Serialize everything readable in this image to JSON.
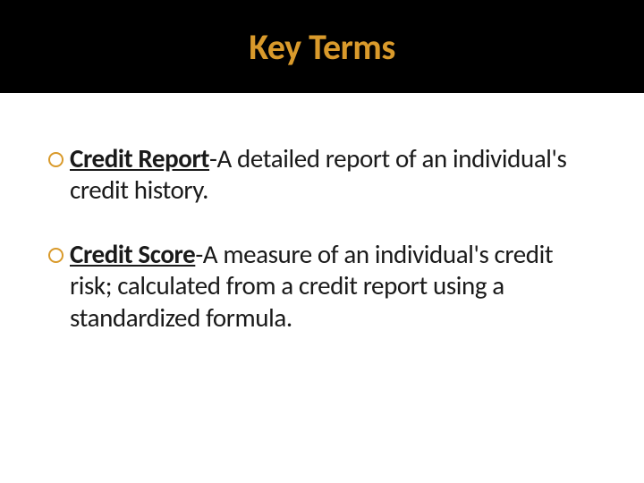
{
  "colors": {
    "title_band_bg": "#000000",
    "title_text": "#d99a2b",
    "bullet_ring": "#d99a2b",
    "body_text": "#1a1a1a",
    "page_bg": "#ffffff"
  },
  "typography": {
    "title_fontsize": 40,
    "body_fontsize": 29,
    "font_family": "Calibri"
  },
  "title": "Key Terms",
  "items": [
    {
      "term": "Credit Report",
      "definition": "-A detailed report of an individual's credit history."
    },
    {
      "term": "Credit Score",
      "definition": "-A measure of an individual's credit risk; calculated from a credit report using a standardized formula."
    }
  ]
}
